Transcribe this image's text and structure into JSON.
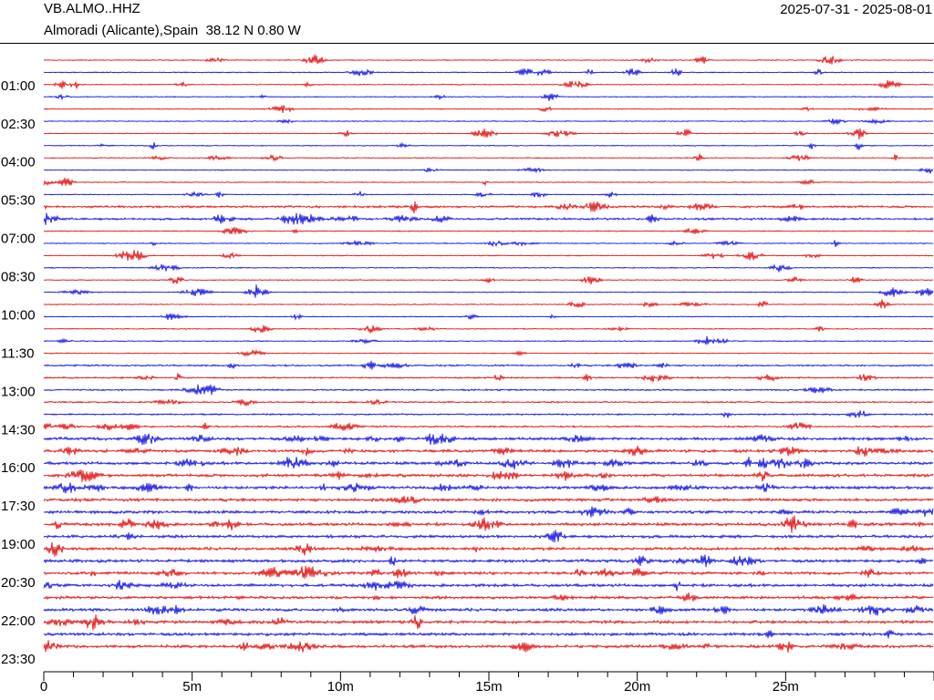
{
  "header": {
    "station": "VB.ALMO..HHZ",
    "location": "Almoradi (Alicante),Spain  38.12 N 0.80 W",
    "date_range": "2025-07-31 - 2025-08-01"
  },
  "colors": {
    "trace_a": "#e00000",
    "trace_b": "#0000e0",
    "axis": "#000000"
  },
  "chart_data": {
    "type": "line",
    "title": "VB.ALMO..HHZ",
    "subtitle": "Almoradi (Alicante),Spain  38.12 N 0.80 W",
    "xlabel": "",
    "ylabel": "",
    "x_unit": "minutes",
    "xlim": [
      0,
      30
    ],
    "x_ticks": [
      0,
      5,
      10,
      15,
      20,
      25
    ],
    "x_tick_labels": [
      "0",
      "5m",
      "10m",
      "15m",
      "20m",
      "25m"
    ],
    "row_minutes": 30,
    "row_count": 49,
    "row_color_cycle": [
      "#e00000",
      "#0000e0"
    ],
    "y_tick_labels": [
      "01:00",
      "02:30",
      "04:00",
      "05:30",
      "07:00",
      "08:30",
      "10:00",
      "11:30",
      "13:00",
      "14:30",
      "16:00",
      "17:30",
      "19:00",
      "20:30",
      "22:00",
      "23:30"
    ],
    "grid": false,
    "legend": "none"
  }
}
